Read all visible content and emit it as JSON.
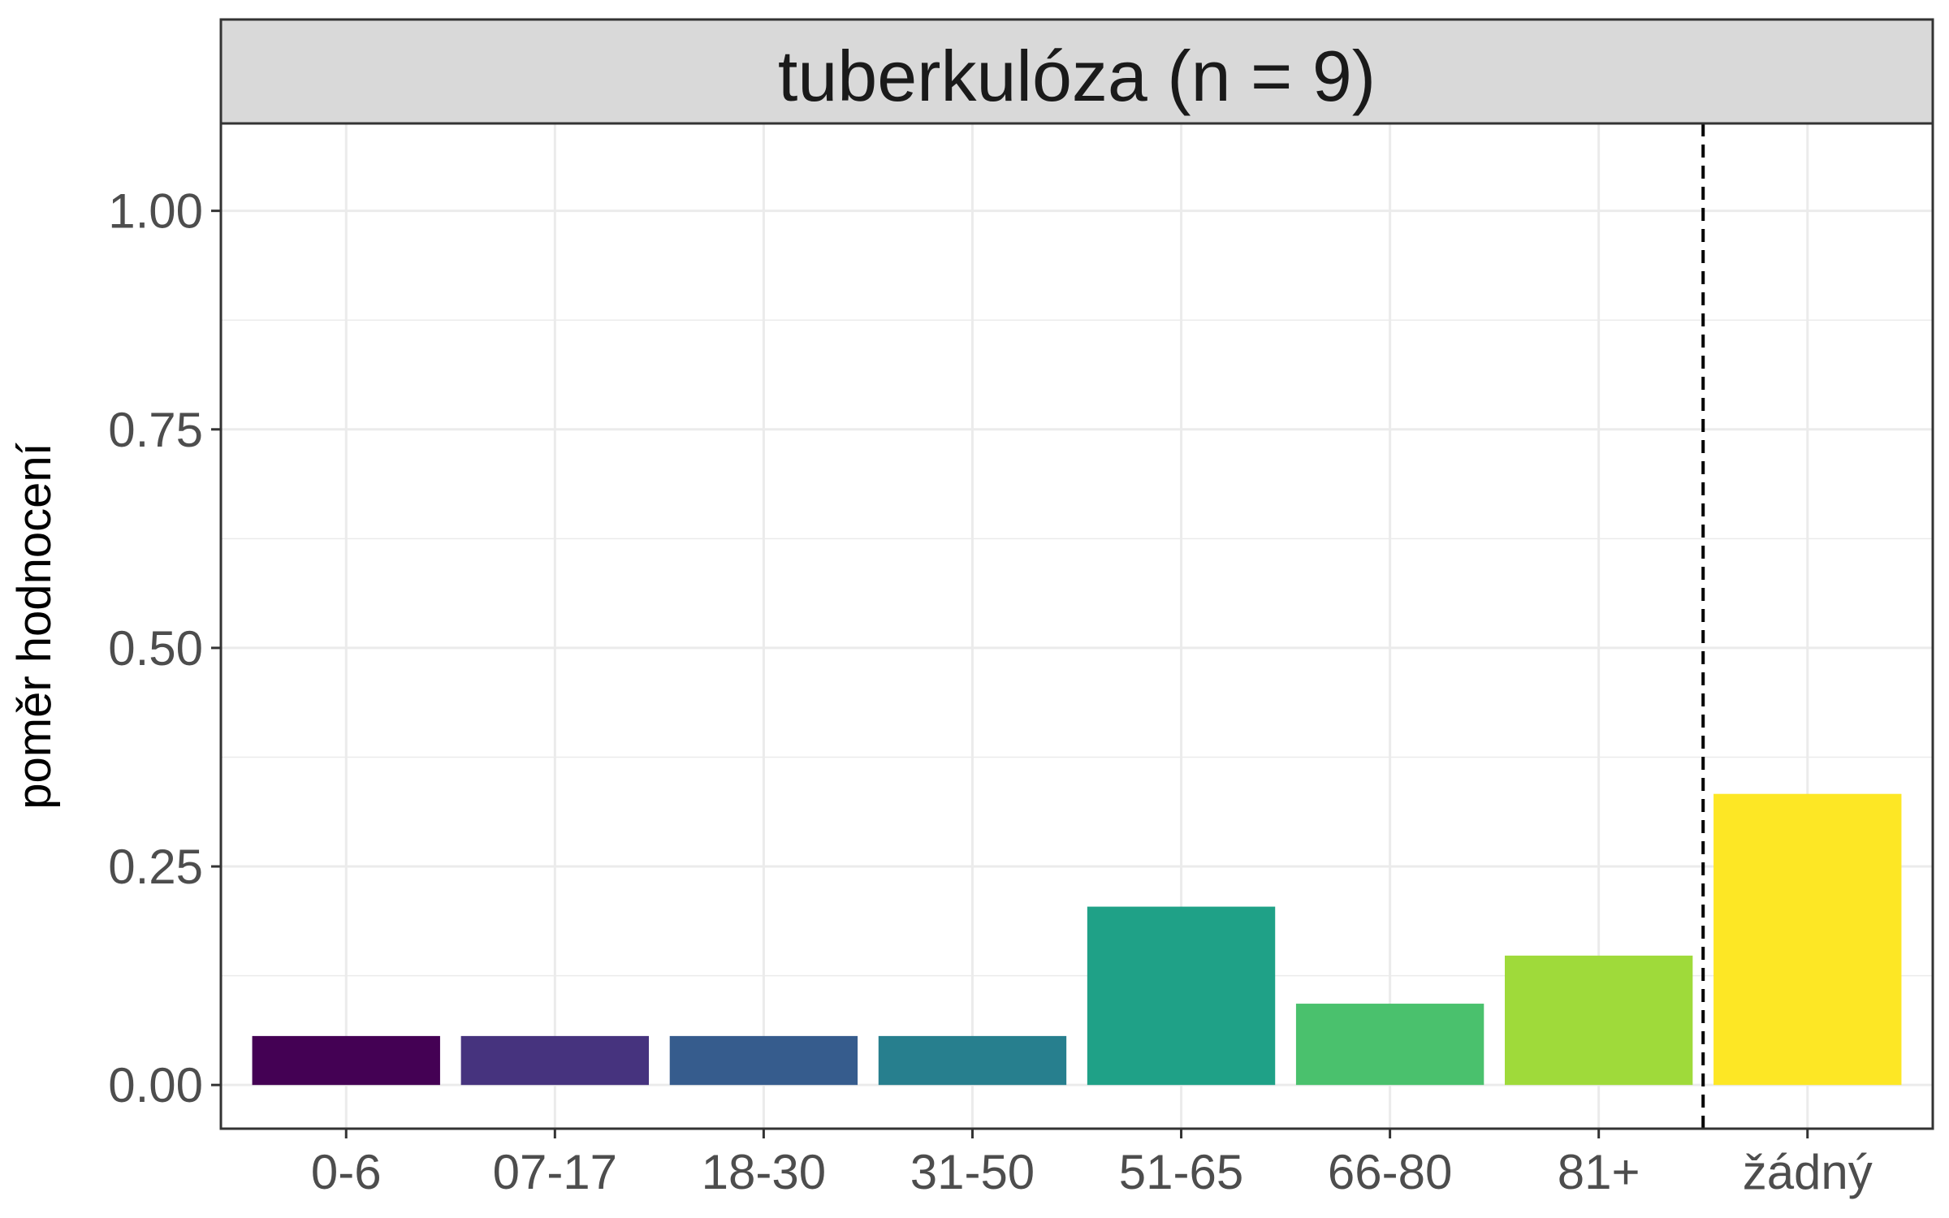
{
  "chart_data": {
    "type": "bar",
    "facet_title": "tuberkulóza (n = 9)",
    "xlabel": "",
    "ylabel": "poměr hodnocení",
    "categories": [
      "0-6",
      "07-17",
      "18-30",
      "31-50",
      "51-65",
      "66-80",
      "81+",
      "žádný"
    ],
    "values": [
      0.056,
      0.056,
      0.056,
      0.056,
      0.204,
      0.093,
      0.148,
      0.333
    ],
    "colors": [
      "#440154",
      "#46337E",
      "#365C8D",
      "#277F8E",
      "#1FA187",
      "#4AC16D",
      "#9FDA3A",
      "#FDE725"
    ],
    "ylim": [
      -0.05,
      1.1
    ],
    "yticks": [
      0.0,
      0.25,
      0.5,
      0.75,
      1.0
    ],
    "ytick_labels": [
      "0.00",
      "0.25",
      "0.50",
      "0.75",
      "1.00"
    ],
    "grid": true,
    "separator_after_category": "81+",
    "separator_style": "dashed"
  }
}
